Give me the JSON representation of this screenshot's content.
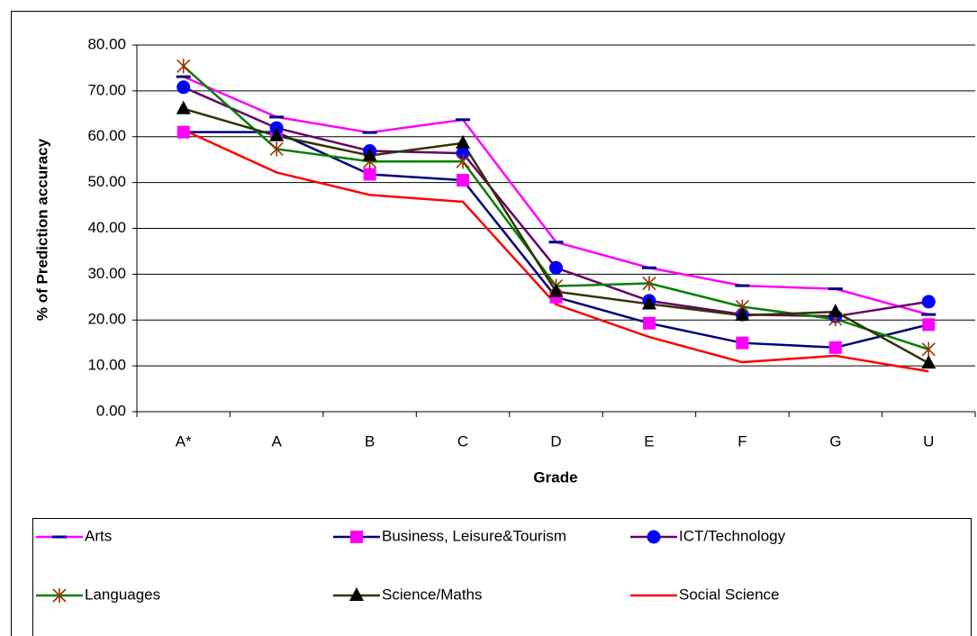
{
  "chart_data": {
    "type": "line",
    "x_label": "Grade",
    "y_label": "% of Prediction accuracy",
    "categories": [
      "A*",
      "A",
      "B",
      "C",
      "D",
      "E",
      "F",
      "G",
      "U"
    ],
    "ylim": [
      0,
      80
    ],
    "yticks": [
      {
        "value": 0,
        "label": "0.00"
      },
      {
        "value": 10,
        "label": "10.00"
      },
      {
        "value": 20,
        "label": "20.00"
      },
      {
        "value": 30,
        "label": "30.00"
      },
      {
        "value": 40,
        "label": "40.00"
      },
      {
        "value": 50,
        "label": "50.00"
      },
      {
        "value": 60,
        "label": "60.00"
      },
      {
        "value": 70,
        "label": "70.00"
      },
      {
        "value": 80,
        "label": "80.00"
      }
    ],
    "grid": true,
    "series": [
      {
        "name": "Arts",
        "color": "#ff00ff",
        "marker": "dash",
        "marker_color": "#000080",
        "values": [
          73.1,
          64.3,
          60.9,
          63.7,
          37.0,
          31.4,
          27.5,
          26.8,
          21.2
        ]
      },
      {
        "name": "Business, Leisure&Tourism",
        "color": "#000080",
        "marker": "square",
        "marker_color": "#ff00ff",
        "values": [
          61.0,
          61.0,
          51.8,
          50.5,
          25.0,
          19.3,
          15.0,
          14.0,
          19.0
        ]
      },
      {
        "name": "ICT/Technology",
        "color": "#660066",
        "marker": "circle",
        "marker_color": "#0000ff",
        "values": [
          70.8,
          61.9,
          56.9,
          56.4,
          31.4,
          24.2,
          21.2,
          20.8,
          24.0
        ]
      },
      {
        "name": "Languages",
        "color": "#008000",
        "marker": "star",
        "marker_color": "#993300",
        "values": [
          75.4,
          57.3,
          54.6,
          54.6,
          27.4,
          28.0,
          22.9,
          20.2,
          13.6
        ]
      },
      {
        "name": "Science/Maths",
        "color": "#333300",
        "marker": "triangle",
        "marker_color": "#000000",
        "values": [
          66.1,
          60.2,
          55.9,
          58.6,
          26.2,
          23.5,
          21.0,
          21.8,
          10.6
        ]
      },
      {
        "name": "Social Science",
        "color": "#ff0000",
        "marker": "none",
        "marker_color": "#ff0000",
        "values": [
          61.5,
          52.2,
          47.3,
          45.8,
          23.4,
          16.3,
          10.8,
          12.2,
          8.8
        ]
      }
    ]
  }
}
